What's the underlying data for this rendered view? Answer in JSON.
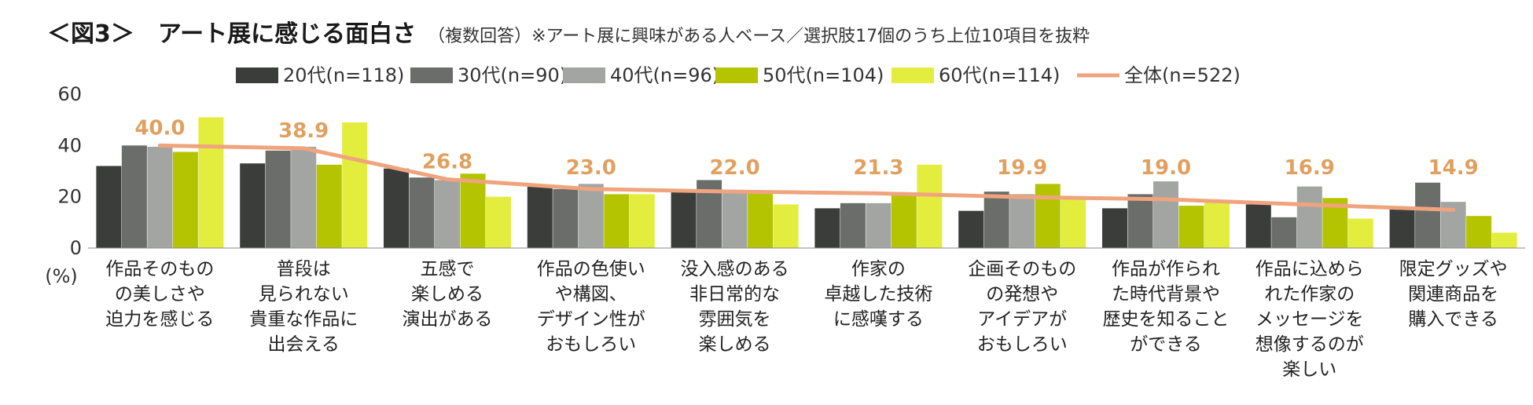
{
  "chart_data": {
    "type": "bar",
    "title": "＜図3＞　アート展に感じる面白さ",
    "subtitle": "（複数回答）※アート展に興味がある人ベース／選択肢17個のうち上位10項目を抜粋",
    "ylabel": "(%)",
    "ylim": [
      0,
      60
    ],
    "yticks": [
      0,
      20,
      40,
      60
    ],
    "legend_position": "top",
    "categories": [
      [
        "作品そのもの",
        "の美しさや",
        "迫力を感じる"
      ],
      [
        "普段は",
        "見られない",
        "貴重な作品に",
        "出会える"
      ],
      [
        "五感で",
        "楽しめる",
        "演出がある"
      ],
      [
        "作品の色使い",
        "や構図、",
        "デザイン性が",
        "おもしろい"
      ],
      [
        "没入感のある",
        "非日常的な",
        "雰囲気を",
        "楽しめる"
      ],
      [
        "作家の",
        "卓越した技術",
        "に感嘆する"
      ],
      [
        "企画そのもの",
        "の発想や",
        "アイデアが",
        "おもしろい"
      ],
      [
        "作品が作られ",
        "た時代背景や",
        "歴史を知ること",
        "ができる"
      ],
      [
        "作品に込めら",
        "れた作家の",
        "メッセージを",
        "想像するのが",
        "楽しい"
      ],
      [
        "限定グッズや",
        "関連商品を",
        "購入できる"
      ]
    ],
    "series": [
      {
        "name": "20代(n=118)",
        "color": "#3b3d3b",
        "values": [
          32,
          33,
          31,
          24,
          22,
          15.5,
          14.5,
          15.5,
          17,
          15.5
        ]
      },
      {
        "name": "30代(n=90)",
        "color": "#6b6d6b",
        "values": [
          40,
          38,
          27.5,
          23,
          26.5,
          17.5,
          22,
          21,
          12,
          25.5
        ]
      },
      {
        "name": "40代(n=96)",
        "color": "#a3a5a3",
        "values": [
          39.5,
          39.5,
          26.5,
          25,
          22,
          17.5,
          21,
          26,
          24,
          18
        ]
      },
      {
        "name": "50代(n=104)",
        "color": "#b5c400",
        "values": [
          37.5,
          32.5,
          29,
          21,
          22.5,
          21,
          25,
          16.5,
          19.5,
          12.5
        ]
      },
      {
        "name": "60代(n=114)",
        "color": "#e3ed3e",
        "values": [
          51,
          49,
          20,
          21,
          17,
          32.5,
          20,
          18,
          11.5,
          6
        ]
      }
    ],
    "total": {
      "name": "全体(n=522)",
      "color": "#f0a47e",
      "label_color": "#e0a060",
      "values": [
        40.0,
        38.9,
        26.8,
        23.0,
        22.0,
        21.3,
        19.9,
        19.0,
        16.9,
        14.9
      ],
      "labels": [
        "40.0",
        "38.9",
        "26.8",
        "23.0",
        "22.0",
        "21.3",
        "19.9",
        "19.0",
        "16.9",
        "14.9"
      ]
    }
  }
}
